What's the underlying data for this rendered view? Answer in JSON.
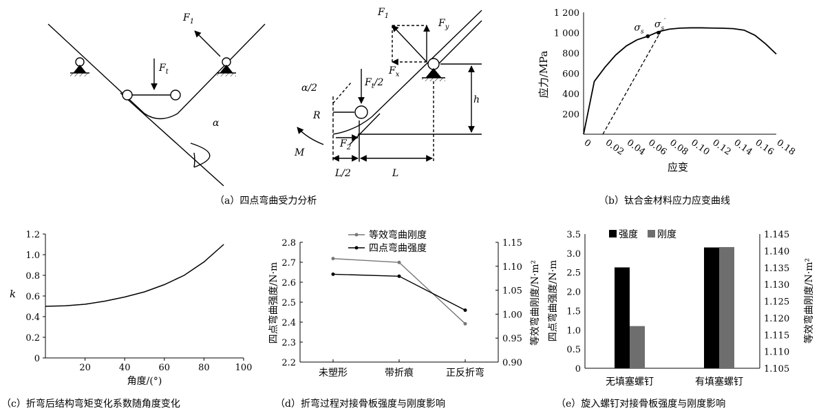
{
  "captions": {
    "a": "（a）四点弯曲受力分析",
    "b": "（b）钛合金材料应力应变曲线",
    "c": "（c）折弯后结构弯矩变化系数随角度变化",
    "d": "（d）折弯过程对接骨板强度与刚度影响",
    "e": "（e）旋入螺钉对接骨板强度与刚度影响"
  },
  "diagram_a": {
    "F1": "F",
    "F1_sub": "1",
    "Ft": "F",
    "Ft_sub": "t",
    "alpha": "α"
  },
  "diagram_a2": {
    "F1": "F",
    "F1_sub": "1",
    "Fy": "F",
    "Fy_sub": "y",
    "Fx": "F",
    "Fx_sub": "x",
    "Ft2": "F",
    "Ft2_sub": "t",
    "Ft2_tail": "/2",
    "alpha2": "α/2",
    "R": "R",
    "h": "h",
    "M": "M",
    "F2": "F",
    "F2_sub": "2",
    "L2": "L/2",
    "L": "L"
  },
  "chart_data": [
    {
      "id": "b",
      "type": "line",
      "xlabel": "应变",
      "ylabel": "应力/MPa",
      "xlim": [
        0,
        0.18
      ],
      "ylim": [
        0,
        1200
      ],
      "x_ticks": [
        "0",
        "0.02",
        "0.04",
        "0.06",
        "0.08",
        "0.10",
        "0.12",
        "0.14",
        "0.16",
        "0.18"
      ],
      "y_ticks": [
        "200",
        "400",
        "600",
        "800",
        "1 000",
        "1 200"
      ],
      "series": [
        {
          "x": [
            0,
            0.01,
            0.02,
            0.03,
            0.04,
            0.05,
            0.06,
            0.07,
            0.08,
            0.09,
            0.1,
            0.11,
            0.12,
            0.13,
            0.14,
            0.15,
            0.16,
            0.17,
            0.18
          ],
          "y": [
            0,
            520,
            660,
            780,
            870,
            930,
            965,
            1010,
            1035,
            1045,
            1048,
            1048,
            1046,
            1044,
            1040,
            1025,
            975,
            890,
            790
          ]
        }
      ],
      "offset_line": {
        "x": [
          0.018,
          0.072
        ],
        "y": [
          0,
          1010
        ]
      },
      "points": [
        {
          "label": "σ",
          "sub": "s",
          "x": 0.06,
          "y": 965
        },
        {
          "label": "σ",
          "sub": "s",
          "sup": "′",
          "x": 0.07,
          "y": 1000
        }
      ]
    },
    {
      "id": "c",
      "type": "line",
      "xlabel": "角度/(°)",
      "ylabel": "k",
      "xlim": [
        0,
        100
      ],
      "ylim": [
        0,
        1.2
      ],
      "x_ticks": [
        "20",
        "40",
        "60",
        "80",
        "100"
      ],
      "y_ticks": [
        "0",
        "0.2",
        "0.4",
        "0.6",
        "0.8",
        "1.0",
        "1.2"
      ],
      "series": [
        {
          "x": [
            0,
            10,
            20,
            30,
            40,
            50,
            60,
            70,
            80,
            90
          ],
          "y": [
            0.5,
            0.505,
            0.52,
            0.55,
            0.59,
            0.64,
            0.71,
            0.8,
            0.93,
            1.1
          ]
        }
      ]
    },
    {
      "id": "d",
      "type": "line",
      "categories": [
        "未塑形",
        "带折痕",
        "正反折弯"
      ],
      "ylabel": "四点弯曲强度/N·m",
      "y2label": "等效弯曲刚度/N·m²",
      "ylim": [
        2.2,
        2.8
      ],
      "y2lim": [
        0.9,
        1.15
      ],
      "y_ticks": [
        "2.2",
        "2.3",
        "2.4",
        "2.5",
        "2.6",
        "2.7",
        "2.8"
      ],
      "y2_ticks": [
        "0.90",
        "0.95",
        "1.00",
        "1.05",
        "1.10",
        "1.15"
      ],
      "series": [
        {
          "name": "等效弯曲刚度",
          "axis": "right",
          "color": "#777777",
          "values": [
            1.116,
            1.108,
            0.98
          ]
        },
        {
          "name": "四点弯曲强度",
          "axis": "left",
          "color": "#000000",
          "values": [
            2.64,
            2.63,
            2.46
          ]
        }
      ]
    },
    {
      "id": "e",
      "type": "bar",
      "categories": [
        "无填塞螺钉",
        "有填塞螺钉"
      ],
      "ylabel": "四点弯曲强度/N·m",
      "y2label": "等效弯曲刚度/N·m²",
      "ylim": [
        0,
        3.5
      ],
      "y2lim": [
        1.105,
        1.145
      ],
      "y_ticks": [
        "0",
        "0.5",
        "1.0",
        "1.5",
        "2.0",
        "2.5",
        "3.0",
        "3.5"
      ],
      "y2_ticks": [
        "1.105",
        "1.110",
        "1.115",
        "1.120",
        "1.125",
        "1.130",
        "1.135",
        "1.140",
        "1.145"
      ],
      "series": [
        {
          "name": "强度",
          "axis": "left",
          "color": "#000000",
          "values": [
            2.63,
            3.15
          ]
        },
        {
          "name": "刚度",
          "axis": "left",
          "color": "#6e6e6e",
          "values": [
            1.1,
            3.16
          ]
        }
      ]
    }
  ]
}
